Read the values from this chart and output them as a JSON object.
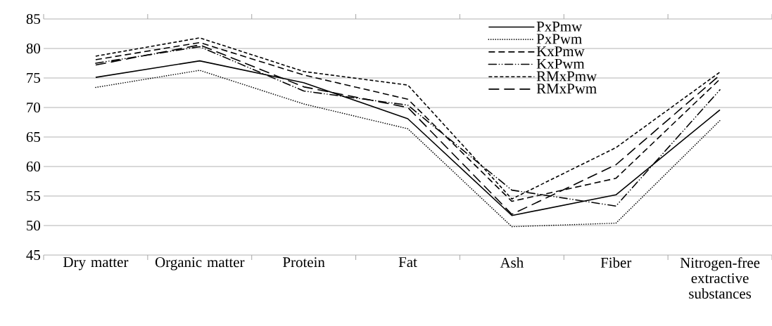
{
  "chart_data": {
    "type": "line",
    "categories": [
      "Dry matter",
      "Organic matter",
      "Protein",
      "Fat",
      "Ash",
      "Fiber",
      "Nitrogen-free extractive substances"
    ],
    "series": [
      {
        "name": "PxPmw",
        "color": "#000000",
        "line_style": "solid",
        "values": [
          75.1,
          77.9,
          74.2,
          68.1,
          51.7,
          55.2,
          69.6
        ]
      },
      {
        "name": "PxPwm",
        "color": "#000000",
        "line_style": "dotted",
        "values": [
          73.4,
          76.3,
          70.6,
          66.4,
          49.8,
          50.4,
          67.8
        ]
      },
      {
        "name": "KxPmw",
        "color": "#000000",
        "line_style": "dashed",
        "values": [
          78.1,
          81.0,
          75.5,
          71.4,
          54.1,
          58.0,
          74.8
        ]
      },
      {
        "name": "KxPwm",
        "color": "#000000",
        "line_style": "dashdotdot",
        "values": [
          77.5,
          80.3,
          72.8,
          70.4,
          56.0,
          53.3,
          73.0
        ]
      },
      {
        "name": "RMxPmw",
        "color": "#000000",
        "line_style": "short dashed",
        "values": [
          78.7,
          81.8,
          76.1,
          73.8,
          54.5,
          63.2,
          76.0
        ]
      },
      {
        "name": "RMxPwm",
        "color": "#000000",
        "line_style": "long dashed",
        "values": [
          77.2,
          80.6,
          73.5,
          70.0,
          51.9,
          60.3,
          75.5
        ]
      }
    ],
    "ylim": [
      45,
      85
    ],
    "yticks": [
      45,
      50,
      55,
      60,
      65,
      70,
      75,
      80,
      85
    ],
    "grid": "y",
    "legend": "top right",
    "marker": "none"
  }
}
